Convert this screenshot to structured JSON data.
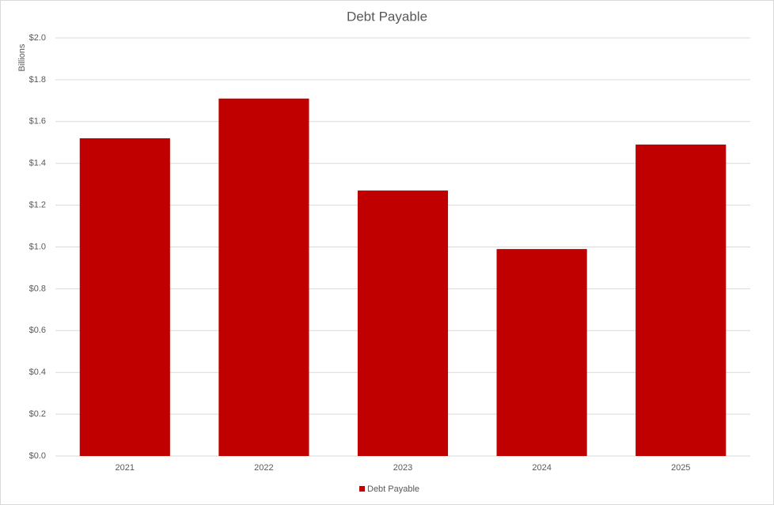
{
  "chart_data": {
    "type": "bar",
    "title": "Debt Payable",
    "y_label": "Billions",
    "categories": [
      "2021",
      "2022",
      "2023",
      "2024",
      "2025"
    ],
    "series": [
      {
        "name": "Debt Payable",
        "color": "#c00000",
        "values": [
          1.52,
          1.71,
          1.27,
          0.99,
          1.49
        ]
      }
    ],
    "ylim": [
      0,
      2.0
    ],
    "yticks": [
      {
        "value": 0,
        "label": "$0.0"
      },
      {
        "value": 0.2,
        "label": "$0.2"
      },
      {
        "value": 0.4,
        "label": "$0.4"
      },
      {
        "value": 0.6,
        "label": "$0.6"
      },
      {
        "value": 0.8,
        "label": "$0.8"
      },
      {
        "value": 1.0,
        "label": "$1.0"
      },
      {
        "value": 1.2,
        "label": "$1.2"
      },
      {
        "value": 1.4,
        "label": "$1.4"
      },
      {
        "value": 1.6,
        "label": "$1.6"
      },
      {
        "value": 1.8,
        "label": "$1.8"
      },
      {
        "value": 2.0,
        "label": "$2.0"
      }
    ],
    "grid": true,
    "legend": "bottom"
  }
}
